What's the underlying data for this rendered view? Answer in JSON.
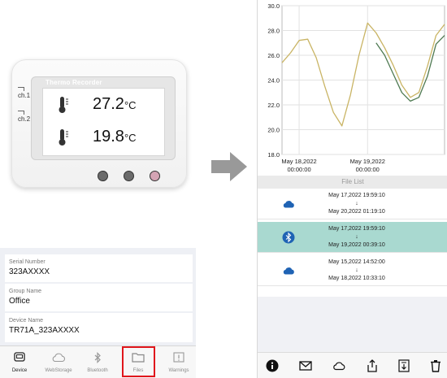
{
  "left_screen": {
    "device": {
      "brand": "Thermo Recorder",
      "channels": [
        {
          "label": "ch.1",
          "value": "27.2",
          "unit": "°C"
        },
        {
          "label": "ch.2",
          "value": "19.8",
          "unit": "°C"
        }
      ]
    },
    "info": [
      {
        "label": "Serial Number",
        "value": "323AXXXX"
      },
      {
        "label": "Group Name",
        "value": "Office"
      },
      {
        "label": "Device Name",
        "value": "TR71A_323AXXXX"
      }
    ],
    "tabs": [
      {
        "label": "Device",
        "icon": "device-icon",
        "active": true
      },
      {
        "label": "WebStorage",
        "icon": "cloud-icon",
        "active": false
      },
      {
        "label": "Bluetooth",
        "icon": "bluetooth-icon",
        "active": false
      },
      {
        "label": "Files",
        "icon": "folder-icon",
        "active": false
      },
      {
        "label": "Warnings",
        "icon": "warning-icon",
        "active": false
      }
    ],
    "highlight_color": "#e0161c"
  },
  "right_screen": {
    "chart_data": {
      "type": "line",
      "y_ticks": [
        "30.0",
        "28.0",
        "26.0",
        "24.0",
        "22.0",
        "20.0",
        "18.0"
      ],
      "ylim": [
        18,
        30
      ],
      "x_ticks": [
        {
          "date": "May 18,2022",
          "time": "00:00:00"
        },
        {
          "date": "May 19,2022",
          "time": "00:00:00"
        }
      ],
      "series": [
        {
          "color": "#c9b464",
          "x_hours": [
            0,
            3,
            6,
            9,
            12,
            15,
            18,
            21,
            24,
            27,
            30,
            33,
            36,
            39,
            42,
            45,
            48,
            51,
            54,
            57
          ],
          "values": [
            25.4,
            26.2,
            27.2,
            27.3,
            25.8,
            23.5,
            21.4,
            20.3,
            22.8,
            26.0,
            28.6,
            27.8,
            26.6,
            25.2,
            23.6,
            22.6,
            23.0,
            25.1,
            27.6,
            28.5
          ]
        },
        {
          "color": "#4f7a52",
          "x_hours": [
            33,
            36,
            39,
            42,
            45,
            48,
            51,
            54,
            57
          ],
          "values": [
            27.0,
            26.0,
            24.5,
            23.0,
            22.3,
            22.6,
            24.3,
            26.9,
            27.6
          ]
        }
      ]
    },
    "file_list_title": "File List",
    "files": [
      {
        "icon": "cloud-icon",
        "start": "May 17,2022 19:59:10",
        "arrow": "↓",
        "end": "May 20,2022 01:19:10",
        "selected": false
      },
      {
        "icon": "bluetooth-icon",
        "start": "May 17,2022 19:59:10",
        "arrow": "↓",
        "end": "May 19,2022 00:39:10",
        "selected": true
      },
      {
        "icon": "cloud-icon",
        "start": "May 15,2022 14:52:00",
        "arrow": "↓",
        "end": "May 18,2022 10:33:10",
        "selected": false
      }
    ],
    "toolbar": [
      "info-icon",
      "mail-icon",
      "cloud-icon",
      "share-icon",
      "export-icon",
      "trash-icon"
    ],
    "selected_color": "#a9d9d0"
  }
}
